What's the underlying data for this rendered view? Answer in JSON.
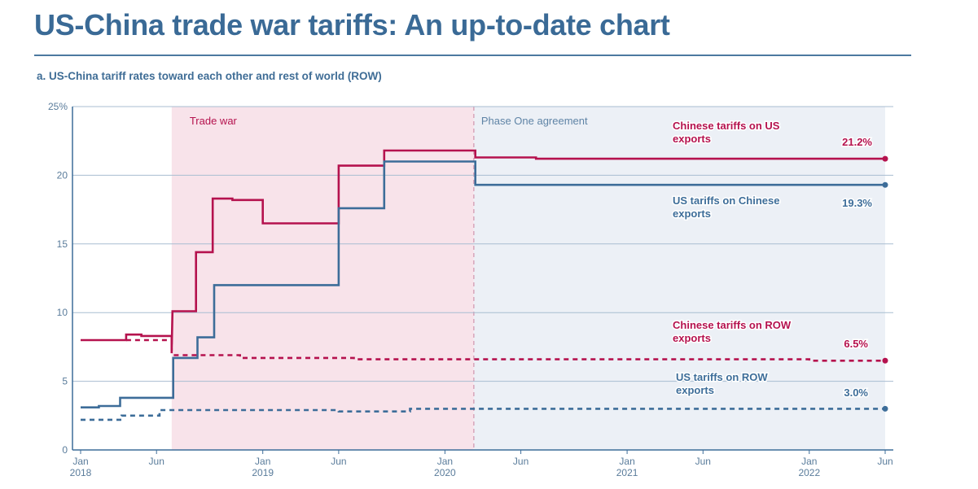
{
  "header": {
    "title": "US-China trade war tariffs: An up-to-date chart",
    "subtitle": "a. US-China tariff rates toward each other and rest of world (ROW)"
  },
  "colors": {
    "chinese": "#b5124e",
    "us": "#3d6d99",
    "trade_war_shade": "#f8e3ea",
    "phase_one_shade": "#ecf0f6",
    "grid": "#a8bdd1",
    "axis_text": "#5a7c9b"
  },
  "chart_data": {
    "type": "line",
    "title": "US-China tariff rates toward each other and rest of world (ROW)",
    "ylabel": "",
    "xlabel": "",
    "ylim": [
      0,
      25
    ],
    "xlim": [
      0,
      53
    ],
    "x_unit": "months since Jan 2018",
    "y_ticks": [
      {
        "value": 0,
        "label": "0"
      },
      {
        "value": 5,
        "label": "5"
      },
      {
        "value": 10,
        "label": "10"
      },
      {
        "value": 15,
        "label": "15"
      },
      {
        "value": 20,
        "label": "20"
      },
      {
        "value": 25,
        "label": "25%"
      }
    ],
    "x_ticks": [
      {
        "month": 0,
        "label": "Jan",
        "year": "2018"
      },
      {
        "month": 5,
        "label": "Jun",
        "year": ""
      },
      {
        "month": 12,
        "label": "Jan",
        "year": "2019"
      },
      {
        "month": 17,
        "label": "Jun",
        "year": ""
      },
      {
        "month": 24,
        "label": "Jan",
        "year": "2020"
      },
      {
        "month": 29,
        "label": "Jun",
        "year": ""
      },
      {
        "month": 36,
        "label": "Jan",
        "year": "2021"
      },
      {
        "month": 41,
        "label": "Jun",
        "year": ""
      },
      {
        "month": 48,
        "label": "Jan",
        "year": "2022"
      },
      {
        "month": 53,
        "label": "Jun",
        "year": ""
      }
    ],
    "periods": [
      {
        "name": "trade-war",
        "label": "Trade war",
        "start": 6.0,
        "end": 25.9
      },
      {
        "name": "phase-one",
        "label": "Phase One agreement",
        "start": 25.9,
        "end": 53
      }
    ],
    "series": [
      {
        "name": "chinese-us",
        "label": "Chinese tariffs on US exports",
        "label_lines": [
          "Chinese tariffs on US",
          "exports"
        ],
        "final_label": "21.2%",
        "color_key": "chinese",
        "style": "solid",
        "points": [
          [
            0,
            8.0
          ],
          [
            3,
            8.0
          ],
          [
            3,
            8.4
          ],
          [
            4,
            8.4
          ],
          [
            4,
            8.3
          ],
          [
            6,
            8.3
          ],
          [
            6,
            7.2
          ],
          [
            6.05,
            10.1
          ],
          [
            7.6,
            10.1
          ],
          [
            7.6,
            14.4
          ],
          [
            8.7,
            14.4
          ],
          [
            8.7,
            18.3
          ],
          [
            10,
            18.3
          ],
          [
            10,
            18.2
          ],
          [
            12,
            18.2
          ],
          [
            12,
            16.5
          ],
          [
            17,
            16.5
          ],
          [
            17,
            20.7
          ],
          [
            20,
            20.7
          ],
          [
            20,
            21.8
          ],
          [
            26,
            21.8
          ],
          [
            26,
            21.3
          ],
          [
            30,
            21.3
          ],
          [
            30,
            21.2
          ],
          [
            53,
            21.2
          ]
        ]
      },
      {
        "name": "us-chinese",
        "label": "US tariffs on Chinese exports",
        "label_lines": [
          "US tariffs on Chinese",
          "exports"
        ],
        "final_label": "19.3%",
        "color_key": "us",
        "style": "solid",
        "points": [
          [
            0,
            3.1
          ],
          [
            1.2,
            3.1
          ],
          [
            1.2,
            3.2
          ],
          [
            2.6,
            3.2
          ],
          [
            2.6,
            3.8
          ],
          [
            6.1,
            3.8
          ],
          [
            6.1,
            6.7
          ],
          [
            7.7,
            6.7
          ],
          [
            7.7,
            8.2
          ],
          [
            8.8,
            8.2
          ],
          [
            8.8,
            12.0
          ],
          [
            17,
            12.0
          ],
          [
            17,
            17.6
          ],
          [
            20,
            17.6
          ],
          [
            20,
            21.0
          ],
          [
            26,
            21.0
          ],
          [
            26,
            19.3
          ],
          [
            53,
            19.3
          ]
        ]
      },
      {
        "name": "chinese-row",
        "label": "Chinese tariffs on ROW exports",
        "label_lines": [
          "Chinese tariffs on ROW",
          "exports"
        ],
        "final_label": "6.5%",
        "color_key": "chinese",
        "style": "dashed",
        "points": [
          [
            3,
            8.0
          ],
          [
            6,
            8.0
          ],
          [
            6,
            6.9
          ],
          [
            10.5,
            6.9
          ],
          [
            10.5,
            6.7
          ],
          [
            18,
            6.7
          ],
          [
            18,
            6.6
          ],
          [
            48,
            6.6
          ],
          [
            48,
            6.5
          ],
          [
            53,
            6.5
          ]
        ]
      },
      {
        "name": "us-row",
        "label": "US tariffs on ROW exports",
        "label_lines": [
          "US tariffs on ROW",
          "exports"
        ],
        "final_label": "3.0%",
        "color_key": "us",
        "style": "dashed",
        "points": [
          [
            0,
            2.2
          ],
          [
            2.7,
            2.2
          ],
          [
            2.7,
            2.5
          ],
          [
            5.2,
            2.5
          ],
          [
            5.2,
            2.9
          ],
          [
            17,
            2.9
          ],
          [
            17,
            2.8
          ],
          [
            21.7,
            2.8
          ],
          [
            21.7,
            3.0
          ],
          [
            53,
            3.0
          ]
        ]
      }
    ]
  }
}
